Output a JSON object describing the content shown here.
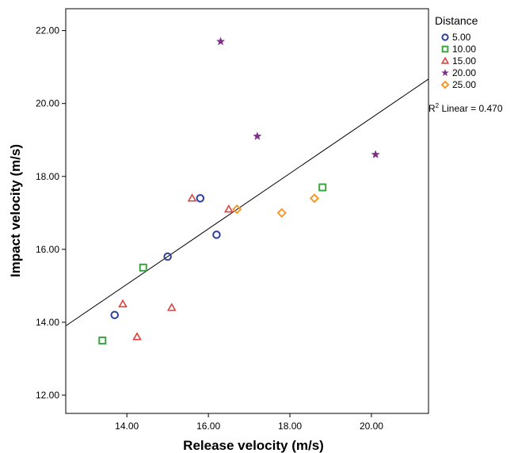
{
  "chart_data": {
    "type": "scatter",
    "title": "",
    "xlabel": "Release velocity (m/s)",
    "ylabel": "Impact velocity (m/s)",
    "xlim": [
      12.5,
      21.4
    ],
    "ylim": [
      11.5,
      22.6
    ],
    "x_ticks": [
      14,
      16,
      18,
      20
    ],
    "x_tick_labels": [
      "14.00",
      "16.00",
      "18.00",
      "20.00"
    ],
    "y_ticks": [
      12,
      14,
      16,
      18,
      20,
      22
    ],
    "y_tick_labels": [
      "12.00",
      "14.00",
      "16.00",
      "18.00",
      "20.00",
      "22.00"
    ],
    "grid": false,
    "legend": {
      "title": "Distance",
      "position": "right",
      "entries": [
        {
          "label": "5.00",
          "marker": "circle",
          "color": "#2d3f9e"
        },
        {
          "label": "10.00",
          "marker": "square",
          "color": "#3aa640"
        },
        {
          "label": "15.00",
          "marker": "triangle",
          "color": "#e0403c"
        },
        {
          "label": "20.00",
          "marker": "star",
          "color": "#7b2f85"
        },
        {
          "label": "25.00",
          "marker": "diamond",
          "color": "#f59a2a"
        }
      ]
    },
    "series": [
      {
        "name": "5.00",
        "marker": "circle",
        "color": "#2d3f9e",
        "points": [
          [
            13.7,
            14.2
          ],
          [
            15.0,
            15.8
          ],
          [
            15.8,
            17.4
          ],
          [
            16.2,
            16.4
          ]
        ]
      },
      {
        "name": "10.00",
        "marker": "square",
        "color": "#3aa640",
        "points": [
          [
            13.4,
            13.5
          ],
          [
            14.4,
            15.5
          ],
          [
            18.8,
            17.7
          ]
        ]
      },
      {
        "name": "15.00",
        "marker": "triangle",
        "color": "#e0403c",
        "points": [
          [
            13.9,
            14.5
          ],
          [
            14.25,
            13.6
          ],
          [
            15.1,
            14.4
          ],
          [
            15.6,
            17.4
          ],
          [
            16.5,
            17.1
          ]
        ]
      },
      {
        "name": "20.00",
        "marker": "star",
        "color": "#7b2f85",
        "points": [
          [
            16.3,
            21.7
          ],
          [
            17.2,
            19.1
          ],
          [
            20.1,
            18.6
          ]
        ]
      },
      {
        "name": "25.00",
        "marker": "diamond",
        "color": "#f59a2a",
        "points": [
          [
            16.7,
            17.1
          ],
          [
            17.8,
            17.0
          ],
          [
            18.6,
            17.4
          ]
        ]
      }
    ],
    "fit_line": {
      "type": "linear",
      "points": [
        [
          12.5,
          13.9
        ],
        [
          21.4,
          20.67
        ]
      ]
    },
    "annotation": {
      "prefix": "R",
      "superscript": "2",
      "text": " Linear = 0.470"
    }
  }
}
